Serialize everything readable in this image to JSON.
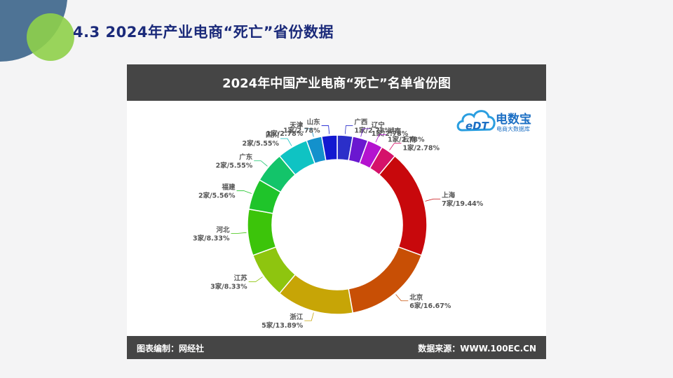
{
  "slide": {
    "title": "4.3  2024年产业电商“死亡”省份数据"
  },
  "card": {
    "header_title": "2024年中国产业电商“死亡”名单省份图",
    "footer_left": "图表编制：网经社",
    "footer_right": "数据来源：WWW.100EC.CN"
  },
  "logo": {
    "name": "电数宝",
    "subtitle": "电商大数据库",
    "mark": "eDT"
  },
  "chart_data": {
    "type": "pie",
    "title": "2024年中国产业电商“死亡”名单省份图",
    "donut": true,
    "unit": "家",
    "slices": [
      {
        "name": "广西",
        "value": 1,
        "percent": "2.78%",
        "color": "#2b2fc9"
      },
      {
        "name": "辽宁",
        "value": 1,
        "percent": "2.78%",
        "color": "#6a18d0"
      },
      {
        "name": "湖南",
        "value": 1,
        "percent": "2.78%",
        "color": "#b412cf"
      },
      {
        "name": "云南",
        "value": 1,
        "percent": "2.78%",
        "color": "#d5126a"
      },
      {
        "name": "上海",
        "value": 7,
        "percent": "19.44%",
        "color": "#c8080c"
      },
      {
        "name": "北京",
        "value": 6,
        "percent": "16.67%",
        "color": "#c84f05"
      },
      {
        "name": "浙江",
        "value": 5,
        "percent": "13.89%",
        "color": "#c7a506"
      },
      {
        "name": "江苏",
        "value": 3,
        "percent": "8.33%",
        "color": "#8ec50f"
      },
      {
        "name": "河北",
        "value": 3,
        "percent": "8.33%",
        "color": "#3cc40a"
      },
      {
        "name": "福建",
        "value": 2,
        "percent": "5.56%",
        "color": "#1fc42a"
      },
      {
        "name": "广东",
        "value": 2,
        "percent": "5.55%",
        "color": "#13c46a"
      },
      {
        "name": "四川",
        "value": 2,
        "percent": "5.55%",
        "color": "#0fc3c3"
      },
      {
        "name": "天津",
        "value": 1,
        "percent": "2.78%",
        "color": "#1391cc"
      },
      {
        "name": "山东",
        "value": 1,
        "percent": "2.78%",
        "color": "#1319d0"
      }
    ]
  }
}
